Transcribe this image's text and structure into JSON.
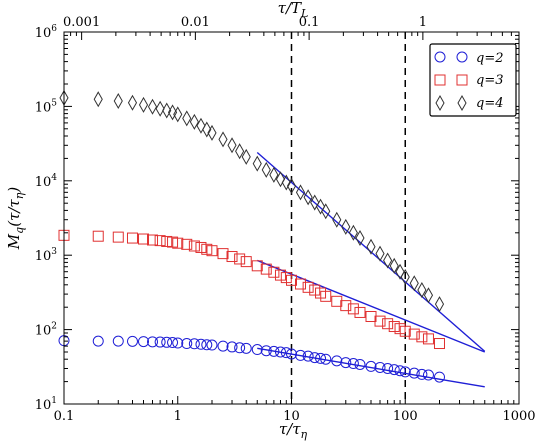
{
  "chart_data": {
    "type": "scatter",
    "x_scale": "log",
    "y_scale": "log",
    "xlim": [
      0.1,
      1000
    ],
    "ylim": [
      10,
      1000000
    ],
    "x_major_ticks": [
      0.1,
      1,
      10,
      100,
      1000
    ],
    "x_tick_labels": [
      "0.1",
      "1",
      "10",
      "100",
      "1000"
    ],
    "y_major_ticks": [
      10,
      100,
      1000,
      10000,
      100000,
      1000000
    ],
    "y_tick_labels": {
      "mantissa": [
        "10",
        "10",
        "10",
        "10",
        "10",
        "10"
      ],
      "exponent": [
        "1",
        "2",
        "3",
        "4",
        "5",
        "6"
      ]
    },
    "xlabel": "τ/τ",
    "xlabel_sub": "η",
    "ylabel": "M",
    "ylabel_sub": "q",
    "ylabel_arg": "(τ/τ",
    "ylabel_arg_sub": "η",
    "ylabel_close": ")",
    "top_axis": {
      "label": "τ/T",
      "label_sub": "L",
      "label_color": "#e03030",
      "scale_factor": 0.007,
      "ticks": [
        0.001,
        0.01,
        0.1,
        1
      ],
      "tick_labels": [
        "0.001",
        "0.01",
        "0.1",
        "1"
      ]
    },
    "vlines": [
      10,
      100
    ],
    "legend": {
      "position": "top-right",
      "entries": [
        {
          "label": "q=2",
          "marker": "circle",
          "color": "#1f1fd6"
        },
        {
          "label": "q=3",
          "marker": "square",
          "color": "#e03030"
        },
        {
          "label": "q=4",
          "marker": "diamond",
          "color": "#333333"
        }
      ]
    },
    "series": [
      {
        "name": "q=2",
        "marker": "circle",
        "color": "#1f1fd6",
        "x": [
          0.1,
          0.2,
          0.3,
          0.4,
          0.5,
          0.6,
          0.7,
          0.8,
          0.9,
          1,
          1.2,
          1.4,
          1.6,
          1.8,
          2,
          2.5,
          3,
          3.5,
          4,
          5,
          6,
          7,
          8,
          9,
          10,
          12,
          14,
          16,
          18,
          20,
          25,
          30,
          35,
          40,
          50,
          60,
          70,
          80,
          90,
          100,
          120,
          140,
          160,
          200
        ],
        "y": [
          71,
          70,
          70,
          69.5,
          69,
          68.5,
          68,
          67.5,
          67,
          66,
          65,
          64.5,
          63.5,
          62.5,
          62,
          60,
          58.5,
          57,
          56,
          54,
          52,
          51,
          50,
          49,
          47,
          45,
          44,
          42,
          41,
          40,
          38,
          36,
          35,
          34,
          32,
          31,
          30,
          29,
          28,
          27,
          26,
          25,
          24.5,
          23
        ]
      },
      {
        "name": "q=3",
        "marker": "square",
        "color": "#e03030",
        "x": [
          0.1,
          0.2,
          0.3,
          0.4,
          0.5,
          0.6,
          0.7,
          0.8,
          0.9,
          1,
          1.2,
          1.4,
          1.6,
          1.8,
          2,
          2.5,
          3,
          3.5,
          4,
          5,
          6,
          7,
          8,
          9,
          10,
          12,
          14,
          16,
          18,
          20,
          25,
          30,
          35,
          40,
          50,
          60,
          70,
          80,
          90,
          100,
          120,
          140,
          160,
          200
        ],
        "y": [
          1850,
          1800,
          1750,
          1700,
          1650,
          1600,
          1570,
          1530,
          1500,
          1450,
          1400,
          1330,
          1270,
          1200,
          1150,
          1050,
          960,
          890,
          820,
          720,
          650,
          590,
          540,
          500,
          460,
          410,
          370,
          340,
          310,
          280,
          240,
          210,
          190,
          170,
          150,
          130,
          120,
          110,
          103,
          95,
          87,
          80,
          75,
          65
        ]
      },
      {
        "name": "q=4",
        "marker": "diamond",
        "color": "#333333",
        "x": [
          0.1,
          0.2,
          0.3,
          0.4,
          0.5,
          0.6,
          0.7,
          0.8,
          0.9,
          1,
          1.2,
          1.4,
          1.6,
          1.8,
          2,
          2.5,
          3,
          3.5,
          4,
          5,
          6,
          7,
          8,
          9,
          10,
          12,
          14,
          16,
          18,
          20,
          25,
          30,
          35,
          40,
          50,
          60,
          70,
          80,
          90,
          100,
          120,
          140,
          160,
          200
        ],
        "y": [
          130000,
          125000,
          118000,
          112000,
          105000,
          99000,
          93000,
          88000,
          83000,
          78000,
          69000,
          62000,
          55000,
          49000,
          44000,
          36000,
          30000,
          25000,
          21000,
          17000,
          14000,
          12000,
          10500,
          9500,
          8500,
          7000,
          6000,
          5100,
          4500,
          3900,
          3000,
          2400,
          2000,
          1700,
          1300,
          1050,
          850,
          720,
          600,
          510,
          420,
          340,
          290,
          220
        ]
      }
    ],
    "fit_lines": [
      {
        "x": [
          5,
          500
        ],
        "y": [
          56,
          17
        ],
        "color": "#1f1fd6"
      },
      {
        "x": [
          5,
          500
        ],
        "y": [
          850,
          50
        ],
        "color": "#1f1fd6"
      },
      {
        "x": [
          5,
          500
        ],
        "y": [
          24000,
          51
        ],
        "color": "#1f1fd6"
      }
    ]
  }
}
